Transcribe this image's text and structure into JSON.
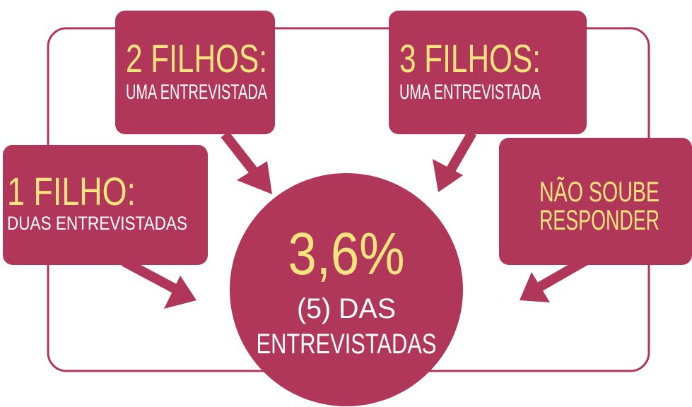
{
  "boxes": [
    {
      "title": "2 FILHOS:",
      "subtitle": "UMA ENTREVISTADA"
    },
    {
      "title": "3 FILHOS:",
      "subtitle": "UMA ENTREVISTADA"
    },
    {
      "title": "1 FILHO:",
      "subtitle": "DUAS ENTREVISTADAS"
    }
  ],
  "unknown": {
    "lines": [
      "NÃO SOUBE",
      "RESPONDER"
    ]
  },
  "center": {
    "value": "3,6%",
    "lines": [
      "(5) DAS",
      "ENTREVISTADAS"
    ]
  }
}
